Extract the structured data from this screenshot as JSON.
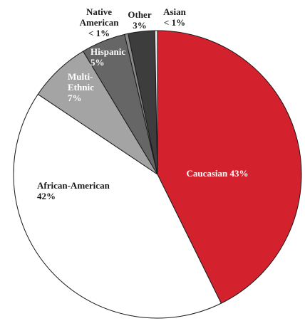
{
  "chart_data": {
    "type": "pie",
    "slices": [
      {
        "label": "Caucasian",
        "pct_label": "43%",
        "value": 43.0,
        "color": "#d3222e",
        "text_color": "#ffffff"
      },
      {
        "label": "African-American",
        "pct_label": "42%",
        "value": 42.0,
        "color": "#ffffff",
        "text_color": "#1a1a1a"
      },
      {
        "label": "Multi-Ethnic",
        "pct_label": "7%",
        "value": 7.0,
        "color": "#a4a4a4",
        "text_color": "#ffffff"
      },
      {
        "label": "Hispanic",
        "pct_label": "5%",
        "value": 5.0,
        "color": "#666666",
        "text_color": "#ffffff"
      },
      {
        "label": "Native American",
        "pct_label": "< 1%",
        "value": 0.4,
        "color": "#8a8a8a",
        "text_color": "#1a1a1a"
      },
      {
        "label": "Other",
        "pct_label": "3%",
        "value": 3.0,
        "color": "#3d3d3d",
        "text_color": "#1a1a1a"
      },
      {
        "label": "Asian",
        "pct_label": "< 1%",
        "value": 0.3,
        "color": "#eeeeee",
        "text_color": "#1a1a1a"
      }
    ],
    "label_lines": {
      "Caucasian": [
        "Caucasian 43%"
      ],
      "African-American": [
        "African-American",
        "42%"
      ],
      "Multi-Ethnic": [
        "Multi-",
        "Ethnic",
        "7%"
      ],
      "Hispanic": [
        "Hispanic",
        "5%"
      ],
      "Native American": [
        "Native",
        "American",
        "< 1%"
      ],
      "Other": [
        "Other",
        "3%"
      ],
      "Asian": [
        "Asian",
        "< 1%"
      ]
    },
    "start_angle_deg": 0,
    "direction": "clockwise"
  }
}
